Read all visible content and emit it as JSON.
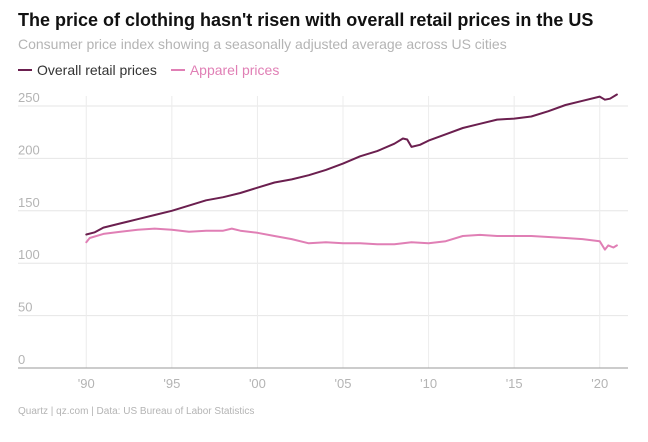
{
  "header": {
    "title": "The price of clothing hasn't risen with overall retail prices in the US",
    "subtitle": "Consumer price index showing a seasonally adjusted average across US cities"
  },
  "footer": {
    "source": "Quartz | qz.com | Data: US Bureau of Labor Statistics"
  },
  "chart_data": {
    "type": "line",
    "title": "The price of clothing hasn't risen with overall retail prices in the US",
    "subtitle": "Consumer price index showing a seasonally adjusted average across US cities",
    "xlabel": "",
    "ylabel": "",
    "xlim": [
      1989.4,
      2021.3
    ],
    "ylim": [
      0,
      250
    ],
    "grid": true,
    "legend_position": "top-left",
    "x_ticks": [
      {
        "value": 1990,
        "label": "'90"
      },
      {
        "value": 1995,
        "label": "'95"
      },
      {
        "value": 2000,
        "label": "'00"
      },
      {
        "value": 2005,
        "label": "'05"
      },
      {
        "value": 2010,
        "label": "'10"
      },
      {
        "value": 2015,
        "label": "'15"
      },
      {
        "value": 2020,
        "label": "'20"
      }
    ],
    "y_ticks": [
      {
        "value": 0,
        "label": "0"
      },
      {
        "value": 50,
        "label": "50"
      },
      {
        "value": 100,
        "label": "100"
      },
      {
        "value": 150,
        "label": "150"
      },
      {
        "value": 200,
        "label": "200"
      },
      {
        "value": 250,
        "label": "250"
      }
    ],
    "series": [
      {
        "name": "Overall retail prices",
        "color": "#6b1f4f",
        "x": [
          1990,
          1990.5,
          1991,
          1992,
          1993,
          1994,
          1995,
          1996,
          1997,
          1998,
          1999,
          2000,
          2001,
          2002,
          2003,
          2004,
          2005,
          2006,
          2007,
          2008,
          2008.5,
          2008.75,
          2009,
          2009.5,
          2010,
          2011,
          2012,
          2013,
          2014,
          2015,
          2016,
          2017,
          2018,
          2019,
          2020,
          2020.3,
          2020.6,
          2021,
          2021
        ],
        "values": [
          127.4,
          129.5,
          134,
          138,
          142,
          146,
          150,
          155,
          160,
          163,
          167,
          172,
          177,
          180,
          184,
          189,
          195,
          202,
          207,
          214,
          219,
          218,
          211,
          213,
          217,
          223,
          229,
          233,
          237,
          238,
          240,
          245,
          251,
          255,
          259,
          256,
          257,
          261,
          261
        ]
      },
      {
        "name": "Apparel prices",
        "color": "#e07fb5",
        "x": [
          1990,
          1990.2,
          1991,
          1992,
          1993,
          1994,
          1995,
          1996,
          1997,
          1998,
          1998.5,
          1999,
          2000,
          2001,
          2002,
          2003,
          2004,
          2005,
          2006,
          2007,
          2008,
          2009,
          2010,
          2011,
          2012,
          2013,
          2014,
          2015,
          2016,
          2017,
          2018,
          2019,
          2020,
          2020.3,
          2020.5,
          2020.8,
          2021
        ],
        "values": [
          120,
          124,
          128,
          130,
          132,
          133,
          132,
          130,
          131,
          131,
          133,
          131,
          129,
          126,
          123,
          119,
          120,
          119,
          119,
          118,
          118,
          120,
          119,
          121,
          126,
          127,
          126,
          126,
          126,
          125,
          124,
          123,
          121,
          113,
          117,
          115,
          117
        ]
      }
    ]
  }
}
